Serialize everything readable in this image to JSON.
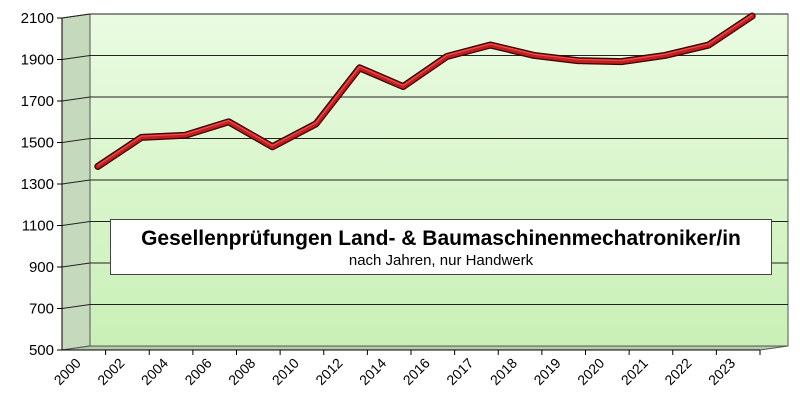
{
  "chart_data": {
    "type": "line",
    "title": "Gesellenprüfungen Land- & Baumaschinenmechatroniker/in",
    "subtitle": "nach Jahren, nur Handwerk",
    "categories": [
      "2000",
      "2002",
      "2004",
      "2006",
      "2008",
      "2010",
      "2012",
      "2014",
      "2016",
      "2017",
      "2018",
      "2019",
      "2020",
      "2021",
      "2022",
      "2023"
    ],
    "values": [
      1375,
      1515,
      1525,
      1590,
      1470,
      1580,
      1850,
      1760,
      1905,
      1960,
      1910,
      1885,
      1880,
      1910,
      1960,
      2100
    ],
    "y_ticks": [
      "500",
      "700",
      "900",
      "1100",
      "1300",
      "1500",
      "1700",
      "1900",
      "2100"
    ],
    "ylim": [
      500,
      2100
    ],
    "grid": true,
    "colors": {
      "plot_background": "#d6f5c8",
      "line": "#c41e1e",
      "floor": "#b3cca6",
      "wall": "#c5d9bc"
    }
  }
}
